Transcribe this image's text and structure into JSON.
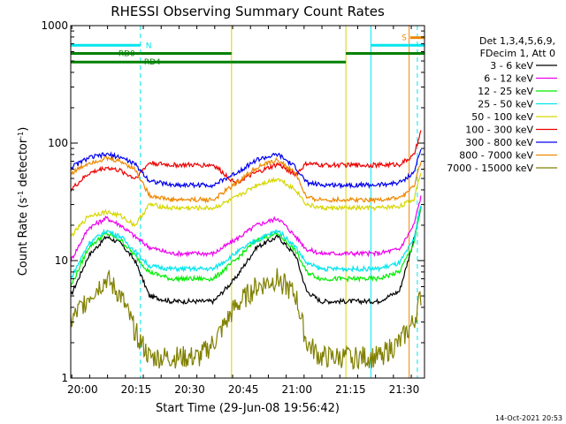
{
  "chart_data": {
    "type": "line",
    "title": "RHESSI Observing Summary Count Rates",
    "xlabel": "Start Time (29-Jun-08 19:56:42)",
    "ylabel_main": "Count Rate (s",
    "ylabel_sup1": "-1",
    "ylabel_mid": " detector",
    "ylabel_sup2": "-1",
    "ylabel_end": ")",
    "yscale": "log",
    "ylim": [
      1,
      1000
    ],
    "xlim_minutes": [
      0,
      99
    ],
    "x_unit": "minutes after 19:56:42",
    "xtick_labels": [
      {
        "label": "20:00",
        "t": 3.3
      },
      {
        "label": "20:15",
        "t": 18.3
      },
      {
        "label": "20:30",
        "t": 33.3
      },
      {
        "label": "20:45",
        "t": 48.3
      },
      {
        "label": "21:00",
        "t": 63.3
      },
      {
        "label": "21:15",
        "t": 78.3
      },
      {
        "label": "21:30",
        "t": 93.3
      }
    ],
    "ytick_labels": [
      {
        "label": "1",
        "v": 1
      },
      {
        "label": "10",
        "v": 10
      },
      {
        "label": "100",
        "v": 100
      },
      {
        "label": "1000",
        "v": 1000
      }
    ],
    "legend_header": [
      "Det 1,3,4,5,6,9,",
      "FDecim 1, Att 0"
    ],
    "series": [
      {
        "name": "3 - 6 keV",
        "color": "#000000",
        "minutes": [
          0,
          5,
          10,
          14,
          18,
          22,
          28,
          36,
          40,
          46,
          52,
          58,
          63,
          66,
          70,
          76,
          80,
          86,
          92,
          96,
          98
        ],
        "values": [
          5,
          11,
          16,
          14,
          10,
          5,
          4.5,
          4.5,
          4.5,
          7,
          13,
          16,
          11,
          5.5,
          4.5,
          4.5,
          4.5,
          4.5,
          5.5,
          15,
          28
        ]
      },
      {
        "name": "6 - 12 keV",
        "color": "#ee00ee",
        "minutes": [
          0,
          5,
          10,
          14,
          18,
          22,
          28,
          36,
          40,
          46,
          52,
          58,
          63,
          66,
          70,
          76,
          80,
          86,
          92,
          96,
          98
        ],
        "values": [
          10,
          19,
          23,
          20,
          16,
          13,
          11.5,
          11.5,
          11.5,
          15,
          20,
          23,
          16,
          12.5,
          11.5,
          11.5,
          11.5,
          11.5,
          12.5,
          20,
          35
        ]
      },
      {
        "name": "12 - 25 keV",
        "color": "#00ee00",
        "minutes": [
          0,
          5,
          10,
          14,
          18,
          22,
          28,
          36,
          40,
          46,
          52,
          58,
          63,
          66,
          70,
          76,
          80,
          86,
          92,
          96,
          98
        ],
        "values": [
          6,
          13,
          17,
          15,
          11,
          8,
          7,
          7,
          7,
          10,
          15,
          17,
          12,
          8,
          7,
          7,
          7,
          7,
          8,
          14,
          28
        ]
      },
      {
        "name": "25 - 50 keV",
        "color": "#00e5ee",
        "minutes": [
          0,
          5,
          10,
          14,
          18,
          22,
          28,
          36,
          40,
          46,
          52,
          58,
          63,
          66,
          70,
          76,
          80,
          86,
          92,
          96,
          98
        ],
        "values": [
          7,
          14,
          18,
          16,
          12,
          9,
          8.5,
          8.5,
          8.5,
          11.5,
          15,
          18,
          13,
          9.5,
          8.5,
          8.5,
          8.5,
          8.5,
          9.5,
          15,
          30
        ]
      },
      {
        "name": "50 - 100 keV",
        "color": "#d6d600",
        "minutes": [
          0,
          5,
          10,
          14,
          18,
          22,
          28,
          36,
          40,
          46,
          52,
          58,
          63,
          66,
          70,
          76,
          80,
          86,
          92,
          96,
          98
        ],
        "values": [
          16,
          24,
          26,
          24,
          20,
          30,
          28,
          28,
          28,
          34,
          44,
          50,
          40,
          30,
          28,
          28,
          28,
          28,
          29,
          33,
          58
        ]
      },
      {
        "name": "100 - 300 keV",
        "color": "#ee0000",
        "minutes": [
          0,
          5,
          10,
          14,
          18,
          22,
          28,
          36,
          40,
          46,
          52,
          58,
          63,
          66,
          70,
          76,
          80,
          86,
          92,
          96,
          98
        ],
        "values": [
          40,
          55,
          62,
          58,
          50,
          68,
          65,
          65,
          65,
          46,
          56,
          66,
          54,
          67,
          65,
          65,
          65,
          65,
          66,
          78,
          125
        ]
      },
      {
        "name": "300 - 800 keV",
        "color": "#0000ee",
        "minutes": [
          0,
          5,
          10,
          14,
          18,
          22,
          28,
          36,
          40,
          46,
          52,
          58,
          63,
          66,
          70,
          76,
          80,
          86,
          92,
          96,
          98
        ],
        "values": [
          62,
          75,
          80,
          76,
          66,
          48,
          44,
          44,
          44,
          55,
          72,
          80,
          62,
          46,
          44,
          44,
          44,
          44,
          46,
          56,
          88
        ]
      },
      {
        "name": "800 - 7000 keV",
        "color": "#ee8800",
        "minutes": [
          0,
          5,
          10,
          14,
          18,
          22,
          28,
          36,
          40,
          46,
          52,
          58,
          63,
          66,
          70,
          76,
          80,
          86,
          92,
          96,
          98
        ],
        "values": [
          55,
          68,
          74,
          70,
          60,
          36,
          33,
          33,
          33,
          45,
          62,
          72,
          55,
          34,
          33,
          33,
          33,
          33,
          34,
          42,
          70
        ]
      },
      {
        "name": "7000 - 15000 keV",
        "color": "#808000",
        "minutes": [
          0,
          5,
          10,
          14,
          18,
          22,
          28,
          36,
          40,
          46,
          52,
          58,
          63,
          66,
          70,
          76,
          80,
          86,
          92,
          96,
          98
        ],
        "values": [
          3,
          5,
          7,
          5,
          2.5,
          1.5,
          1.5,
          1.5,
          2,
          4,
          6,
          7,
          5,
          2,
          1.5,
          1.5,
          1.5,
          1.5,
          2,
          3,
          5
        ]
      }
    ],
    "overlays": {
      "markers": [
        {
          "label": "N",
          "color": "#00e5ee",
          "start": 0,
          "end": 19.5,
          "level": 680
        },
        {
          "label": "",
          "color": "#00e5ee",
          "start": 84,
          "end": 99,
          "level": 680
        },
        {
          "label": "RD0",
          "color": "#008000",
          "start": 0,
          "end": 19.5,
          "level": 580
        },
        {
          "label": "RD4",
          "color": "#008000",
          "start": 0,
          "end": 45,
          "level": 490
        },
        {
          "label": "",
          "color": "#008000",
          "start": 19.5,
          "end": 45,
          "level": 580
        },
        {
          "label": "",
          "color": "#008000",
          "start": 45,
          "end": 77,
          "level": 490
        },
        {
          "label": "",
          "color": "#008000",
          "start": 77,
          "end": 99,
          "level": 580
        },
        {
          "label": "S",
          "color": "#ee8800",
          "start": 95,
          "end": 99,
          "level": 790
        }
      ],
      "vlines": [
        {
          "t": 0,
          "color": "#00e5ee",
          "style": "solid"
        },
        {
          "t": 19.5,
          "color": "#00e5ee",
          "style": "dashed"
        },
        {
          "t": 84,
          "color": "#00e5ee",
          "style": "solid"
        },
        {
          "t": 97,
          "color": "#00e5ee",
          "style": "dashed"
        },
        {
          "t": 45,
          "color": "#d6d600",
          "style": "solid"
        },
        {
          "t": 77,
          "color": "#d6d600",
          "style": "solid"
        },
        {
          "t": 94.7,
          "color": "#ee8800",
          "style": "solid"
        },
        {
          "t": 99,
          "color": "#ee8800",
          "style": "solid"
        }
      ]
    }
  },
  "footer": {
    "timestamp": "14-Oct-2021 20:53"
  }
}
